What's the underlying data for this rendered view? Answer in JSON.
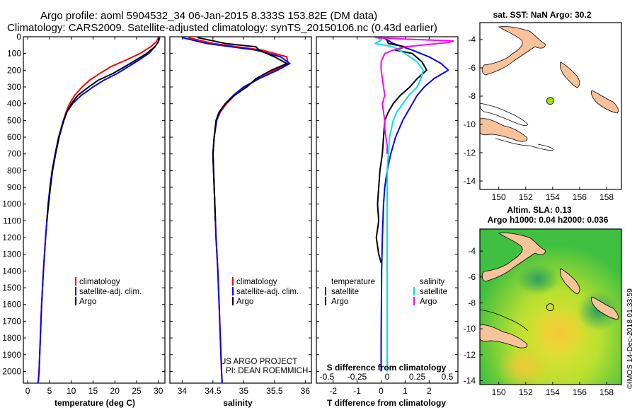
{
  "header": {
    "line1": "Argo profile: aoml 5904532_34 06-Jan-2015 8.333S 153.82E (DM data)",
    "line2": "Climatology: CARS2009. Satellite-adjusted climatology: synTS_20150106.nc (0.43d earlier)"
  },
  "colors": {
    "climatology": "#ff0000",
    "satellite": "#0000ff",
    "argo": "#000000",
    "sat_salinity": "#00e0e0",
    "argo_salinity": "#ff00ff",
    "land": "#f8c29a",
    "dot": "#a0e000"
  },
  "chart_data": [
    {
      "type": "line",
      "title": "",
      "xlabel": "temperature (deg C)",
      "ylabel": "",
      "xlim": [
        -1,
        31.5
      ],
      "ylim": [
        2070,
        0
      ],
      "xticks": [
        "0",
        "5",
        "10",
        "15",
        "20",
        "25",
        "30"
      ],
      "yticks": [
        "0",
        "100",
        "200",
        "300",
        "400",
        "500",
        "600",
        "700",
        "800",
        "900",
        "1000",
        "1100",
        "1200",
        "1300",
        "1400",
        "1500",
        "1600",
        "1700",
        "1800",
        "1900",
        "2000"
      ],
      "legend": [
        "climatology",
        "satellite-adj. clim.",
        "Argo"
      ],
      "series": [
        {
          "name": "climatology",
          "depth": [
            5,
            30,
            60,
            100,
            140,
            180,
            220,
            260,
            300,
            350,
            400,
            450,
            500,
            600,
            700,
            800,
            900,
            1000,
            1200,
            1400,
            1600,
            1800,
            2000,
            2070
          ],
          "values": [
            30,
            29.5,
            28.2,
            25.8,
            22.5,
            19,
            16.5,
            14.2,
            12.5,
            10.8,
            9.6,
            8.8,
            8.2,
            7.2,
            6.4,
            5.7,
            5.2,
            4.7,
            4.1,
            3.6,
            3.2,
            2.9,
            2.6,
            2.4
          ]
        },
        {
          "name": "satellite-adj. clim.",
          "depth": [
            5,
            30,
            60,
            100,
            140,
            180,
            220,
            260,
            300,
            350,
            400,
            450,
            500,
            600,
            700,
            800,
            900,
            1000,
            1200,
            1400,
            1600,
            1800,
            2000,
            2070
          ],
          "values": [
            30.2,
            30,
            29.2,
            27.8,
            25.5,
            23,
            20.5,
            17.5,
            15,
            12.3,
            10.3,
            9,
            8.2,
            7.1,
            6.3,
            5.6,
            5.1,
            4.7,
            4.1,
            3.6,
            3.2,
            2.9,
            2.6,
            2.4
          ]
        },
        {
          "name": "Argo",
          "depth": [
            5,
            30,
            60,
            100,
            140,
            180,
            220,
            260,
            300,
            350,
            400,
            450,
            500,
            600,
            700,
            800,
            900,
            1000,
            1100
          ],
          "values": [
            30.3,
            30,
            29.2,
            27.3,
            24.8,
            22.2,
            19.5,
            16.2,
            14,
            11.5,
            10,
            9,
            8.3,
            7.2,
            6.4,
            5.7,
            5.2,
            4.8,
            4.4
          ]
        }
      ]
    },
    {
      "type": "line",
      "title": "",
      "xlabel": "salinity",
      "ylabel": "",
      "xlim": [
        33.8,
        36.1
      ],
      "ylim": [
        2070,
        0
      ],
      "xticks": [
        "34",
        "34.5",
        "35",
        "35.5",
        "36"
      ],
      "legend": [
        "climatology",
        "satellite-adj. clim.",
        "Argo"
      ],
      "annotations": [
        "US ARGO PROJECT",
        "PI: DEAN ROEMMICH"
      ],
      "series": [
        {
          "name": "climatology",
          "depth": [
            5,
            40,
            80,
            120,
            160,
            200,
            250,
            300,
            350,
            400,
            450,
            500,
            600,
            700,
            800,
            900,
            1000,
            1200,
            1400,
            1600,
            1800,
            2000,
            2070
          ],
          "values": [
            34.1,
            34.5,
            35.3,
            35.7,
            35.72,
            35.5,
            35.25,
            35.02,
            34.85,
            34.72,
            34.62,
            34.56,
            34.52,
            34.5,
            34.51,
            34.52,
            34.53,
            34.55,
            34.58,
            34.6,
            34.62,
            34.64,
            34.65
          ]
        },
        {
          "name": "satellite-adj. clim.",
          "depth": [
            5,
            40,
            80,
            120,
            160,
            200,
            250,
            300,
            350,
            400,
            450,
            500,
            600,
            700,
            800,
            900,
            1000,
            1200,
            1400,
            1600,
            1800,
            2000,
            2070
          ],
          "values": [
            34.0,
            34.4,
            35.2,
            35.6,
            35.75,
            35.55,
            35.25,
            35.0,
            34.83,
            34.7,
            34.61,
            34.56,
            34.52,
            34.5,
            34.51,
            34.52,
            34.53,
            34.55,
            34.58,
            34.6,
            34.62,
            34.64,
            34.65
          ]
        },
        {
          "name": "Argo",
          "depth": [
            5,
            40,
            60,
            80,
            120,
            160,
            200,
            250,
            300,
            350,
            400,
            450,
            500,
            600,
            700,
            800,
            900,
            1000,
            1100
          ],
          "values": [
            34.25,
            34.7,
            35.2,
            35.25,
            35.5,
            35.7,
            35.45,
            35.2,
            35.05,
            34.85,
            34.7,
            34.6,
            34.55,
            34.52,
            34.5,
            34.51,
            34.52,
            34.53,
            34.54
          ]
        }
      ]
    },
    {
      "type": "line",
      "title": "",
      "xlabel": "T difference from climatology",
      "xlabel2": "S difference from climatology",
      "xlim": [
        -2.7,
        3.2
      ],
      "ylim": [
        2070,
        0
      ],
      "xticks": [
        "-2",
        "-1",
        "0",
        "1",
        "2"
      ],
      "xticks2": [
        "-0.5",
        "-0.25",
        "0",
        "0.25",
        "0.5"
      ],
      "legend_left_title": "temperature",
      "legend_right_title": "salinity",
      "legend_left": [
        "satellite",
        "Argo"
      ],
      "legend_right": [
        "satellite",
        "Argo"
      ],
      "series": [
        {
          "name": "T satellite",
          "depth": [
            5,
            40,
            80,
            120,
            160,
            200,
            250,
            300,
            350,
            400,
            450,
            500,
            600,
            700,
            800,
            900,
            1000,
            1200,
            1400,
            1600,
            1800,
            2000
          ],
          "values": [
            0.1,
            0.5,
            1.3,
            2.0,
            2.5,
            2.8,
            2.2,
            1.8,
            1.5,
            1.3,
            1.1,
            0.9,
            0.6,
            0.4,
            0.25,
            0.15,
            0.1,
            0.05,
            0.02,
            0.01,
            0,
            0
          ]
        },
        {
          "name": "T Argo",
          "depth": [
            5,
            40,
            60,
            80,
            100,
            150,
            200,
            250,
            300,
            350,
            400,
            450,
            500,
            600,
            700,
            800,
            900,
            1000,
            1100,
            1200,
            1300,
            1350
          ],
          "values": [
            0.2,
            0.3,
            1.0,
            0.6,
            1.3,
            1.7,
            1.9,
            1.5,
            1.2,
            0.8,
            0.5,
            0.3,
            0.15,
            0.1,
            0.05,
            -0.05,
            -0.1,
            -0.15,
            -0.1,
            -0.2,
            -0.1,
            0
          ]
        },
        {
          "name": "S satellite",
          "depth": [
            5,
            20,
            40,
            60,
            80,
            100,
            150,
            200,
            250,
            300,
            350,
            400,
            450,
            500,
            600,
            700,
            800,
            900,
            1000,
            1200,
            1400,
            1600,
            1800,
            2000
          ],
          "values": [
            -0.08,
            -0.05,
            -0.1,
            0.05,
            0.1,
            0.15,
            0.25,
            0.3,
            0.28,
            0.25,
            0.18,
            0.13,
            0.08,
            0.05,
            0.02,
            0.01,
            0,
            0,
            0,
            0,
            0,
            0,
            0,
            0
          ]
        },
        {
          "name": "S Argo",
          "depth": [
            5,
            15,
            25,
            35,
            45,
            60,
            80,
            100,
            150,
            200,
            250,
            300,
            350,
            400,
            450,
            500,
            550,
            600,
            650,
            700
          ],
          "values": [
            -0.1,
            0.2,
            0.55,
            0.5,
            0.35,
            0.15,
            0.05,
            -0.02,
            -0.05,
            -0.05,
            -0.04,
            -0.03,
            -0.02,
            -0.04,
            -0.03,
            -0.02,
            -0.02,
            -0.01,
            0,
            0
          ]
        }
      ]
    }
  ],
  "maps": {
    "top_title": "sat. SST: NaN  Argo: 30.2",
    "bottom_title_1": "Altim. SLA: 0.13",
    "bottom_title_2": "Argo h1000: 0.04 h2000: 0.036",
    "lon_ticks": [
      "150",
      "152",
      "154",
      "156",
      "158"
    ],
    "lat_ticks": [
      "-4",
      "-6",
      "-8",
      "-10",
      "-12",
      "-14"
    ],
    "float_position": {
      "lon": 153.82,
      "lat": -8.333
    }
  },
  "footer": "©IMOS 14-Dec-2018 01:33:59"
}
